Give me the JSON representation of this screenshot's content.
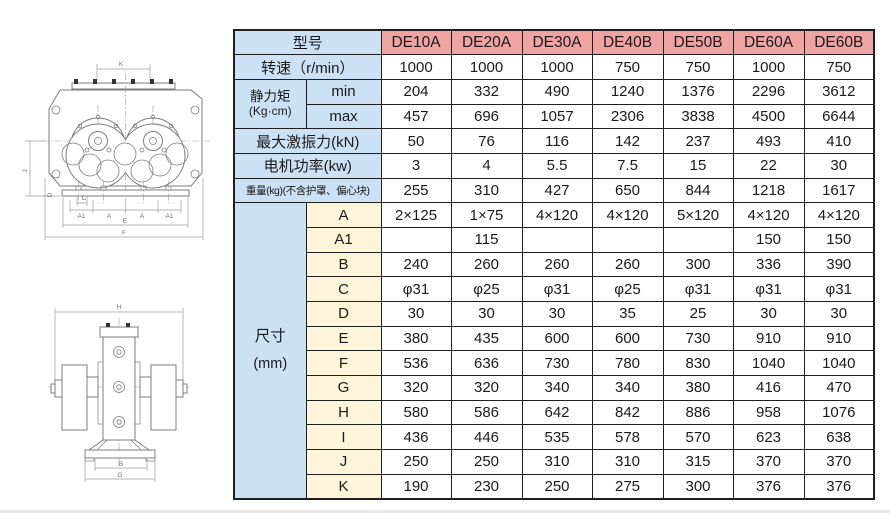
{
  "colors": {
    "header_pink": "#f0a3a3",
    "label_blue": "#cde1f4",
    "dim_cream": "#fcf5d9",
    "grid": "#1f1f1f",
    "value_ink": "#1a1a1a",
    "drawing_line": "#7d7d7d",
    "dim_line": "#9c9c9c"
  },
  "table": {
    "corner_label": "型号",
    "models": [
      "DE10A",
      "DE20A",
      "DE30A",
      "DE40B",
      "DE50B",
      "DE60A",
      "DE60B"
    ],
    "rows": [
      {
        "kind": "simple",
        "label": "转速（r/min）",
        "values": [
          "1000",
          "1000",
          "1000",
          "750",
          "750",
          "1000",
          "750"
        ]
      },
      {
        "kind": "group2",
        "label": "静力矩",
        "sublabel": "(Kg·cm)",
        "subrows": [
          {
            "label": "min",
            "values": [
              "204",
              "332",
              "490",
              "1240",
              "1376",
              "2296",
              "3612"
            ]
          },
          {
            "label": "max",
            "values": [
              "457",
              "696",
              "1057",
              "2306",
              "3838",
              "4500",
              "6644"
            ]
          }
        ]
      },
      {
        "kind": "simple",
        "label": "最大激振力(kN)",
        "values": [
          "50",
          "76",
          "116",
          "142",
          "237",
          "493",
          "410"
        ]
      },
      {
        "kind": "simple",
        "label": "电机功率(kw)",
        "values": [
          "3",
          "4",
          "5.5",
          "7.5",
          "15",
          "22",
          "30"
        ]
      },
      {
        "kind": "simple",
        "small": true,
        "label": "重量(kg)(不含护罩、偏心块)",
        "values": [
          "255",
          "310",
          "427",
          "650",
          "844",
          "1218",
          "1617"
        ]
      },
      {
        "kind": "group12",
        "label": "尺寸",
        "sublabel": "(mm)",
        "subrows": [
          {
            "label": "A",
            "values": [
              "2×125",
              "1×75",
              "4×120",
              "4×120",
              "5×120",
              "4×120",
              "4×120"
            ]
          },
          {
            "label": "A1",
            "values": [
              "",
              "115",
              "",
              "",
              "",
              "150",
              "150"
            ]
          },
          {
            "label": "B",
            "values": [
              "240",
              "260",
              "260",
              "260",
              "300",
              "336",
              "390"
            ]
          },
          {
            "label": "C",
            "values": [
              "φ31",
              "φ25",
              "φ31",
              "φ25",
              "φ31",
              "φ31",
              "φ31"
            ]
          },
          {
            "label": "D",
            "values": [
              "30",
              "30",
              "30",
              "35",
              "25",
              "30",
              "30"
            ]
          },
          {
            "label": "E",
            "values": [
              "380",
              "435",
              "600",
              "600",
              "730",
              "910",
              "910"
            ]
          },
          {
            "label": "F",
            "values": [
              "536",
              "636",
              "730",
              "780",
              "830",
              "1040",
              "1040"
            ]
          },
          {
            "label": "G",
            "values": [
              "320",
              "320",
              "340",
              "340",
              "380",
              "416",
              "470"
            ]
          },
          {
            "label": "H",
            "values": [
              "580",
              "586",
              "642",
              "842",
              "886",
              "958",
              "1076"
            ]
          },
          {
            "label": "I",
            "values": [
              "436",
              "446",
              "535",
              "578",
              "570",
              "623",
              "638"
            ]
          },
          {
            "label": "J",
            "values": [
              "250",
              "250",
              "310",
              "310",
              "315",
              "370",
              "370"
            ]
          },
          {
            "label": "K",
            "values": [
              "190",
              "230",
              "250",
              "275",
              "300",
              "376",
              "376"
            ]
          }
        ]
      }
    ]
  },
  "drawings": {
    "front": {
      "k": "K",
      "c": "C",
      "a1_left": "A1",
      "a_left": "A",
      "a_right": "A",
      "a1_right": "A1",
      "e": "E",
      "f": "F",
      "d": "D",
      "j": "J"
    },
    "side": {
      "h": "H",
      "b": "B",
      "g": "G"
    }
  }
}
